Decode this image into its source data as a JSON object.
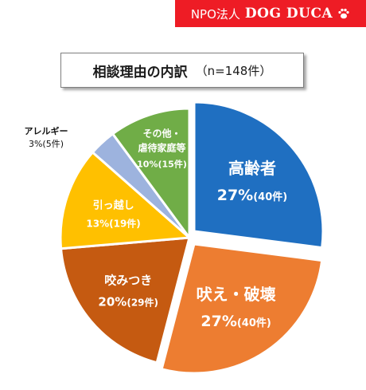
{
  "brand": {
    "org": "NPO法人",
    "name": "DOG DUCA",
    "icon": "paw-icon",
    "background": "#ee1c25"
  },
  "chart_data": {
    "type": "pie",
    "title": "相談理由の内訳",
    "subtitle": "（n=148件）",
    "slices": [
      {
        "name": "高齢者",
        "percent": "27%",
        "count": "(40件)",
        "value": 40,
        "color": "#1f6fc1"
      },
      {
        "name": "吠え・破壊",
        "percent": "27%",
        "count": "(40件)",
        "value": 40,
        "color": "#ed7d31"
      },
      {
        "name": "咬みつき",
        "percent": "20%",
        "count": "(29件)",
        "value": 29,
        "color": "#c55a11"
      },
      {
        "name": "引っ越し",
        "percent": "13%",
        "count": "(19件)",
        "value": 19,
        "color": "#ffc000"
      },
      {
        "name": "アレルギー",
        "percent": "3%",
        "count": "(5件)",
        "value": 5,
        "color": "#9db3de"
      },
      {
        "name": "その他・虐待家庭等",
        "percent": "10%",
        "count": "(15件)",
        "value": 15,
        "color": "#70ad47"
      }
    ]
  }
}
